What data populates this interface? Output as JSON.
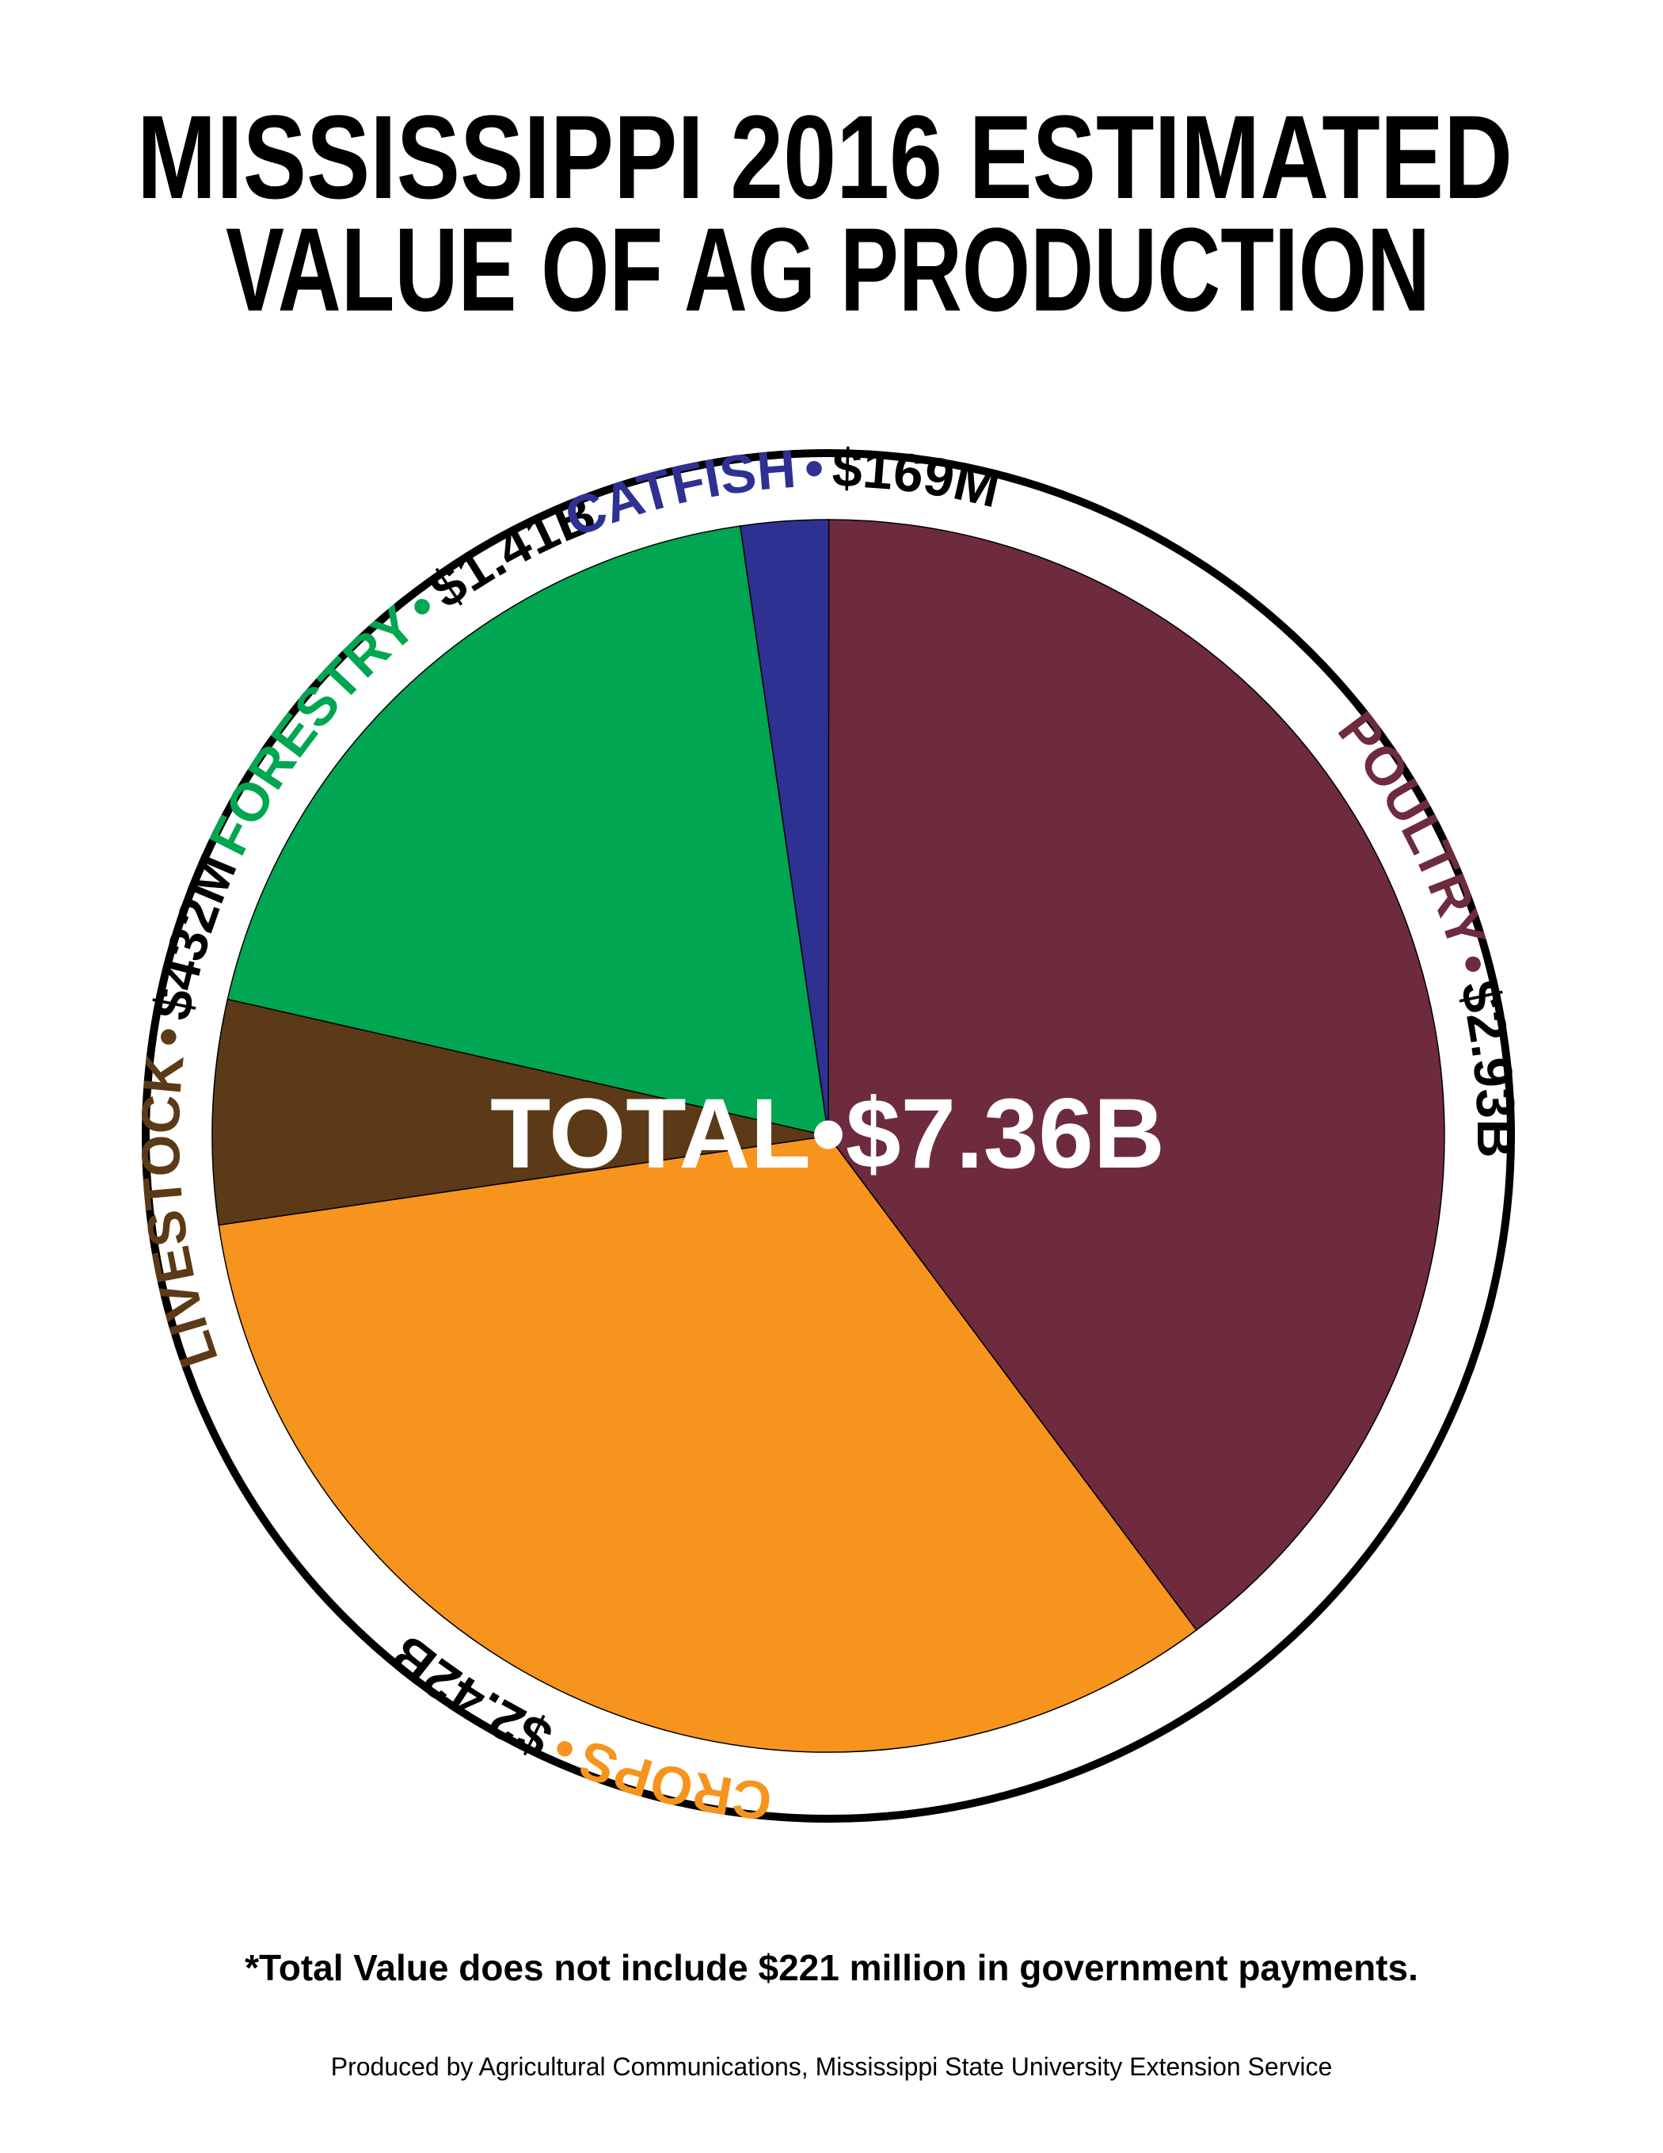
{
  "chart_data": {
    "type": "pie",
    "title": [
      "MISSISSIPPI 2016 ESTIMATED",
      "VALUE OF AG PRODUCTION"
    ],
    "categories": [
      "POULTRY",
      "CROPS",
      "LIVESTOCK",
      "FORESTRY",
      "CATFISH"
    ],
    "values": [
      2930,
      2420,
      432,
      1410,
      169
    ],
    "value_labels": [
      "$2.93B",
      "$2.42B",
      "$432M",
      "$1.41B",
      "$169M"
    ],
    "colors": [
      "#6e2b3e",
      "#f7941d",
      "#5c3a17",
      "#00a651",
      "#2e3192"
    ],
    "separator": "•",
    "total_label": "TOTAL",
    "total": 7360,
    "total_value_label": "$7.36B",
    "note": "*Total Value does not include $221 million in government payments.",
    "credit": "Produced by Agricultural Communications, Mississippi State University Extension Service"
  }
}
